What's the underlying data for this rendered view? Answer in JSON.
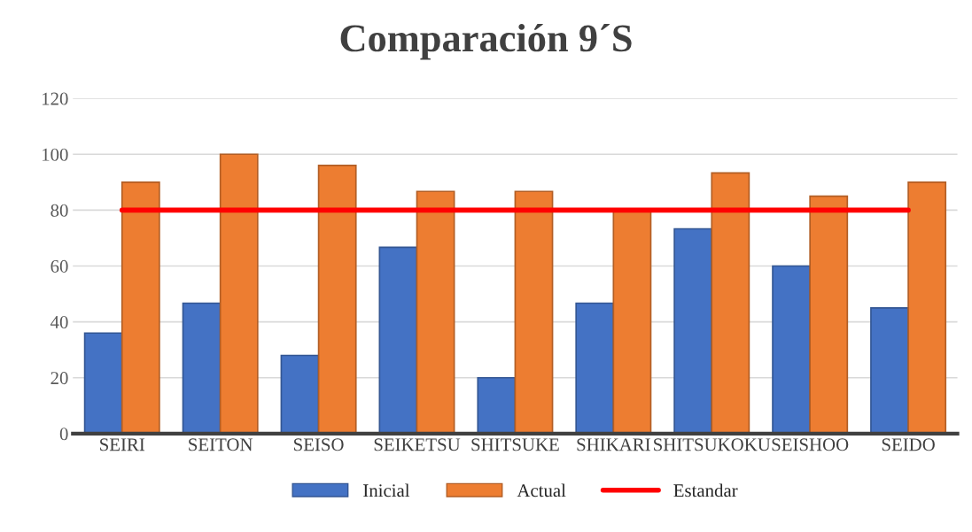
{
  "chart_data": {
    "type": "bar",
    "title": "Comparación 9´S",
    "categories": [
      "SEIRI",
      "SEITON",
      "SEISO",
      "SEIKETSU",
      "SHITSUKE",
      "SHIKARI",
      "SHITSUKOKU",
      "SEISHOO",
      "SEIDO"
    ],
    "series": [
      {
        "name": "Inicial",
        "color": "#4472c4",
        "values": [
          36,
          46.7,
          28,
          66.7,
          20,
          46.7,
          73.3,
          60,
          45
        ]
      },
      {
        "name": "Actual",
        "color": "#ed7d31",
        "values": [
          90,
          100,
          96,
          86.7,
          86.7,
          80,
          93.3,
          85,
          90
        ]
      },
      {
        "name": "Estandar",
        "type": "line",
        "color": "#ff0000",
        "values": [
          80,
          80,
          80,
          80,
          80,
          80,
          80,
          80,
          80
        ]
      }
    ],
    "ylim": [
      0,
      120
    ],
    "yticks": [
      0,
      20,
      40,
      60,
      80,
      100,
      120
    ],
    "grid": "y",
    "legend": "bottom"
  }
}
